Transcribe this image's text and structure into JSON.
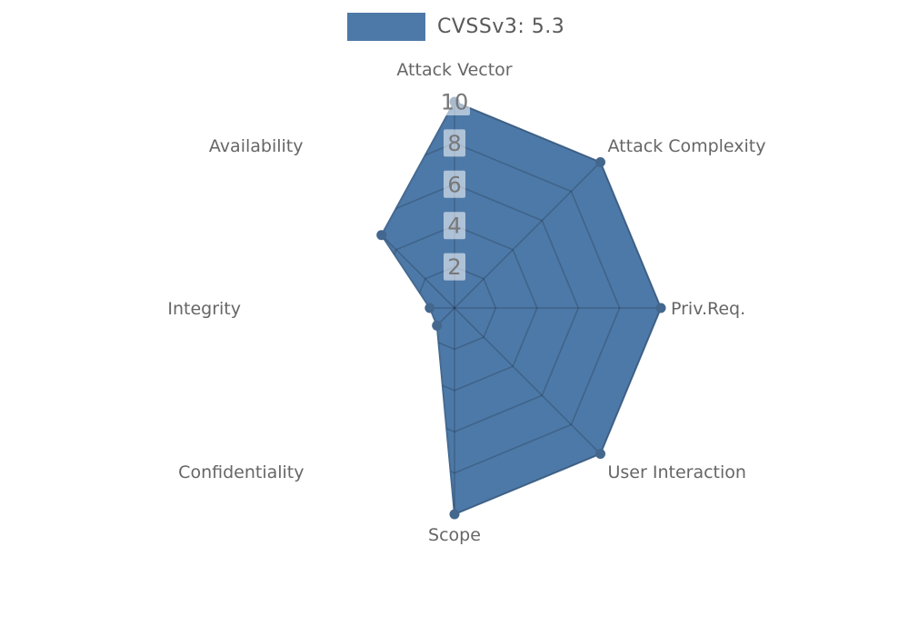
{
  "legend": {
    "label": "CVSSv3: 5.3",
    "swatch_color": "#4d79a8"
  },
  "chart_data": {
    "type": "radar",
    "title": "CVSSv3: 5.3",
    "categories": [
      "Attack Vector",
      "Attack Complexity",
      "Priv.Req.",
      "User Interaction",
      "Scope",
      "Confidentiality",
      "Integrity",
      "Availability"
    ],
    "series": [
      {
        "name": "CVSSv3: 5.3",
        "values": [
          10,
          10,
          10,
          10,
          10,
          1.2,
          1.2,
          5
        ]
      }
    ],
    "radial_ticks": [
      2,
      4,
      6,
      8,
      10
    ],
    "rmax": 10,
    "grid": true,
    "legend_position": "top",
    "colors": {
      "fill": "#4d79a8",
      "stroke": "#466a91",
      "marker": "#44678e",
      "grid_line": "rgba(0,0,0,0.18)",
      "axis_label": "#666666",
      "tick_text": "#777777",
      "tick_box": "rgba(255,255,255,0.55)"
    }
  }
}
